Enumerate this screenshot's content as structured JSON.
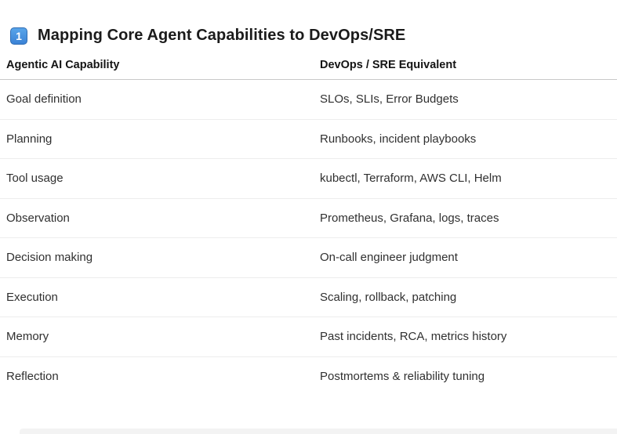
{
  "header": {
    "badge_label": "1",
    "title": "Mapping Core Agent Capabilities to DevOps/SRE"
  },
  "table": {
    "columns": [
      "Agentic AI Capability",
      "DevOps / SRE Equivalent"
    ],
    "rows": [
      {
        "capability": "Goal definition",
        "equivalent": "SLOs, SLIs, Error Budgets"
      },
      {
        "capability": "Planning",
        "equivalent": "Runbooks, incident playbooks"
      },
      {
        "capability": "Tool usage",
        "equivalent": "kubectl, Terraform, AWS CLI, Helm"
      },
      {
        "capability": "Observation",
        "equivalent": "Prometheus, Grafana, logs, traces"
      },
      {
        "capability": "Decision making",
        "equivalent": "On-call engineer judgment"
      },
      {
        "capability": "Execution",
        "equivalent": "Scaling, rollback, patching"
      },
      {
        "capability": "Memory",
        "equivalent": "Past incidents, RCA, metrics history"
      },
      {
        "capability": "Reflection",
        "equivalent": "Postmortems & reliability tuning"
      }
    ]
  },
  "colors": {
    "badge_blue": "#3b82d6",
    "badge_border": "#2f6cb3",
    "header_rule": "#c9c9c9",
    "row_rule": "#ededed",
    "title_text": "#1b1b1b",
    "body_text": "#303030"
  }
}
